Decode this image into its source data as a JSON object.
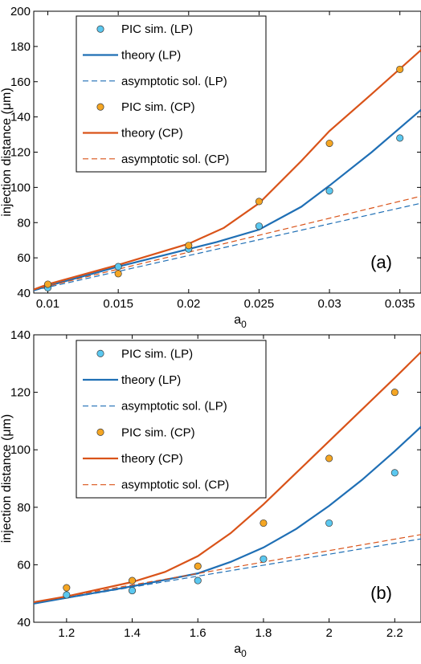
{
  "colors": {
    "lp": "#1f6fb5",
    "lp_marker": "#5bc8f0",
    "cp": "#d95319",
    "cp_marker": "#f5a623"
  },
  "legend": [
    {
      "label": "PIC sim. (LP)",
      "kind": "marker",
      "series": "lp"
    },
    {
      "label": "theory (LP)",
      "kind": "solid",
      "series": "lp"
    },
    {
      "label": "asymptotic sol. (LP)",
      "kind": "dashed",
      "series": "lp"
    },
    {
      "label": "PIC sim. (CP)",
      "kind": "marker",
      "series": "cp"
    },
    {
      "label": "theory (CP)",
      "kind": "solid",
      "series": "cp"
    },
    {
      "label": "asymptotic sol. (CP)",
      "kind": "dashed",
      "series": "cp"
    }
  ],
  "chart_data": [
    {
      "type": "line",
      "panel_label": "(a)",
      "xlabel_main": "a",
      "xlabel_sub": "0",
      "ylabel": "injection distance (μm)",
      "xlim": [
        0.009,
        0.0365
      ],
      "ylim": [
        40,
        200
      ],
      "xticks": [
        0.01,
        0.015,
        0.02,
        0.025,
        0.03,
        0.035
      ],
      "xtick_labels": [
        "0.01",
        "0.015",
        "0.02",
        "0.025",
        "0.03",
        "0.035"
      ],
      "yticks": [
        40,
        60,
        80,
        100,
        120,
        140,
        160,
        180,
        200
      ],
      "ytick_labels": [
        "40",
        "60",
        "80",
        "100",
        "120",
        "140",
        "160",
        "180",
        "200"
      ],
      "series": [
        {
          "name": "PIC sim. (LP)",
          "kind": "scatter",
          "color": "lp",
          "x": [
            0.01,
            0.015,
            0.02,
            0.025,
            0.03,
            0.035
          ],
          "y": [
            43,
            55,
            65,
            78,
            98,
            128
          ]
        },
        {
          "name": "theory (LP)",
          "kind": "line",
          "color": "lp",
          "x": [
            0.009,
            0.01,
            0.015,
            0.02,
            0.022,
            0.025,
            0.028,
            0.03,
            0.033,
            0.0365
          ],
          "y": [
            41.5,
            44,
            55,
            65,
            69,
            76,
            89,
            101,
            120,
            144
          ]
        },
        {
          "name": "asymptotic sol. (LP)",
          "kind": "dashed",
          "color": "lp",
          "x": [
            0.009,
            0.0365
          ],
          "y": [
            41.5,
            91
          ]
        },
        {
          "name": "PIC sim. (CP)",
          "kind": "scatter",
          "color": "cp",
          "x": [
            0.01,
            0.015,
            0.02,
            0.025,
            0.03,
            0.035
          ],
          "y": [
            45,
            51,
            67,
            92,
            125,
            167
          ]
        },
        {
          "name": "theory (CP)",
          "kind": "line",
          "color": "cp",
          "x": [
            0.009,
            0.01,
            0.015,
            0.02,
            0.0225,
            0.025,
            0.028,
            0.03,
            0.033,
            0.0365
          ],
          "y": [
            42,
            45,
            56,
            68,
            77,
            91,
            115,
            132,
            153,
            178
          ]
        },
        {
          "name": "asymptotic sol. (CP)",
          "kind": "dashed",
          "color": "cp",
          "x": [
            0.009,
            0.0365
          ],
          "y": [
            42,
            95
          ]
        }
      ]
    },
    {
      "type": "line",
      "panel_label": "(b)",
      "xlabel_main": "a",
      "xlabel_sub": "0",
      "ylabel": "injection distance (μm)",
      "xlim": [
        1.1,
        2.28
      ],
      "ylim": [
        40,
        140
      ],
      "xticks": [
        1.2,
        1.4,
        1.6,
        1.8,
        2.0,
        2.2
      ],
      "xtick_labels": [
        "1.2",
        "1.4",
        "1.6",
        "1.8",
        "2",
        "2.2"
      ],
      "yticks": [
        40,
        60,
        80,
        100,
        120,
        140
      ],
      "ytick_labels": [
        "40",
        "60",
        "80",
        "100",
        "120",
        "140"
      ],
      "series": [
        {
          "name": "PIC sim. (LP)",
          "kind": "scatter",
          "color": "lp",
          "x": [
            1.2,
            1.4,
            1.6,
            1.8,
            2.0,
            2.2
          ],
          "y": [
            49.5,
            51,
            54.5,
            62,
            74.5,
            92
          ]
        },
        {
          "name": "theory (LP)",
          "kind": "line",
          "color": "lp",
          "x": [
            1.1,
            1.2,
            1.4,
            1.6,
            1.7,
            1.8,
            1.9,
            2.0,
            2.1,
            2.2,
            2.28
          ],
          "y": [
            46.5,
            48.5,
            52.5,
            57,
            61,
            66,
            72.5,
            80.5,
            89.5,
            99.5,
            108
          ]
        },
        {
          "name": "asymptotic sol. (LP)",
          "kind": "dashed",
          "color": "lp",
          "x": [
            1.1,
            2.28
          ],
          "y": [
            46.5,
            69
          ]
        },
        {
          "name": "PIC sim. (CP)",
          "kind": "scatter",
          "color": "cp",
          "x": [
            1.2,
            1.4,
            1.6,
            1.8,
            2.0,
            2.2
          ],
          "y": [
            52,
            54.5,
            59.5,
            74.5,
            97,
            120
          ]
        },
        {
          "name": "theory (CP)",
          "kind": "line",
          "color": "cp",
          "x": [
            1.1,
            1.2,
            1.4,
            1.5,
            1.6,
            1.7,
            1.8,
            1.9,
            2.0,
            2.1,
            2.2,
            2.28
          ],
          "y": [
            47,
            49,
            54,
            57.5,
            63,
            71,
            81,
            92,
            103,
            114,
            125,
            134
          ]
        },
        {
          "name": "asymptotic sol. (CP)",
          "kind": "dashed",
          "color": "cp",
          "x": [
            1.1,
            2.28
          ],
          "y": [
            47,
            70.5
          ]
        }
      ]
    }
  ]
}
